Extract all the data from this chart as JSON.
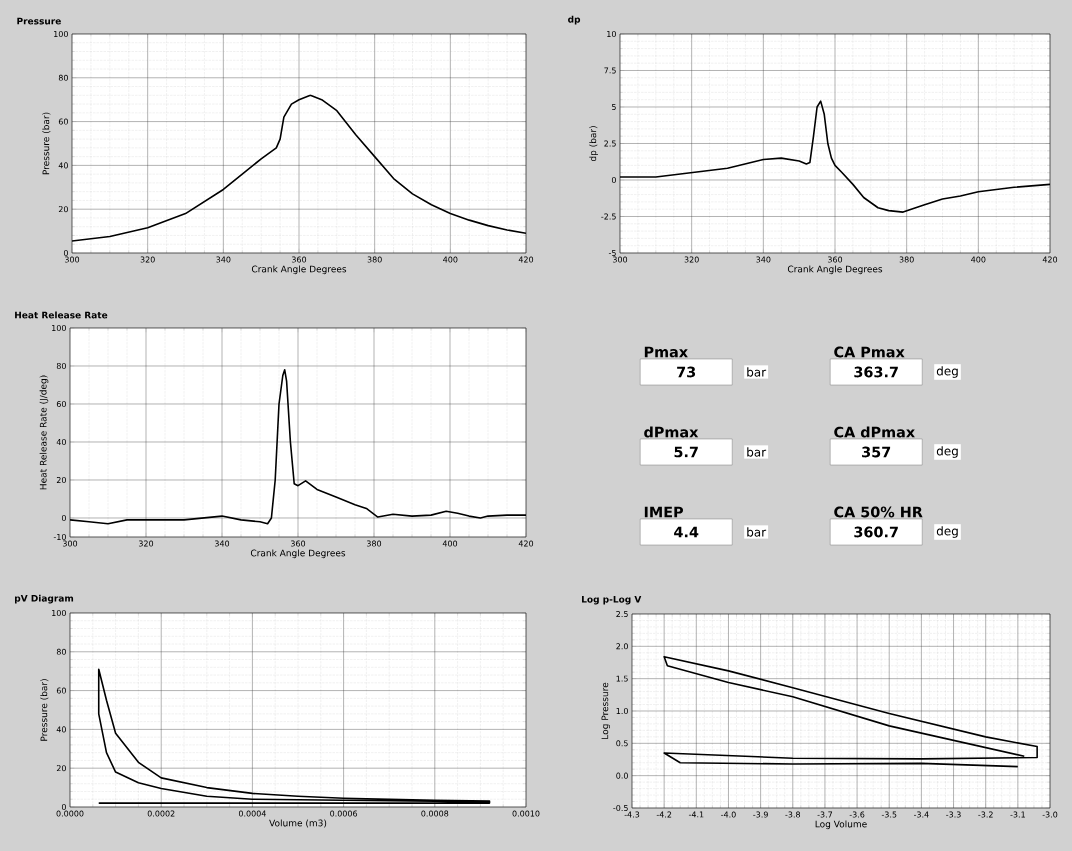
{
  "chart_data": [
    {
      "type": "line",
      "title": "Pressure",
      "xlabel": "Crank Angle Degrees",
      "ylabel": "Pressure (bar)",
      "color": "#000000",
      "marker": "none",
      "grid": true,
      "xlim": [
        300,
        420
      ],
      "xticks": [
        300,
        320,
        340,
        360,
        380,
        400,
        420
      ],
      "ylim": [
        0,
        100
      ],
      "yticks": [
        0,
        20,
        40,
        60,
        80,
        100
      ],
      "x": [
        300,
        310,
        320,
        330,
        340,
        345,
        350,
        354,
        355,
        356,
        358,
        360,
        363,
        366,
        370,
        375,
        380,
        385,
        390,
        395,
        400,
        405,
        410,
        415,
        420
      ],
      "values": [
        5.5,
        7.5,
        11.5,
        18,
        29,
        36,
        43,
        48,
        52,
        62,
        68,
        70,
        72,
        70,
        65,
        54,
        44,
        34,
        27,
        22,
        18,
        15,
        12.5,
        10.5,
        9
      ]
    },
    {
      "type": "line",
      "title": "dp",
      "xlabel": "Crank Angle Degrees",
      "ylabel": "dp (bar)",
      "color": "#000000",
      "marker": "none",
      "grid": true,
      "xlim": [
        300,
        420
      ],
      "xticks": [
        300,
        320,
        340,
        360,
        380,
        400,
        420
      ],
      "ylim": [
        -5,
        10
      ],
      "yticks": [
        -5,
        -2.5,
        0,
        2.5,
        5,
        7.5,
        10
      ],
      "x": [
        300,
        310,
        320,
        330,
        340,
        345,
        350,
        352,
        353,
        354,
        355,
        356,
        357,
        358,
        359,
        360,
        362,
        365,
        368,
        372,
        375,
        379,
        385,
        390,
        395,
        400,
        410,
        420
      ],
      "values": [
        0.2,
        0.2,
        0.5,
        0.8,
        1.4,
        1.5,
        1.3,
        1.1,
        1.2,
        3,
        5,
        5.4,
        4.5,
        2.5,
        1.5,
        1,
        0.5,
        -0.3,
        -1.2,
        -1.9,
        -2.1,
        -2.2,
        -1.7,
        -1.3,
        -1.1,
        -0.8,
        -0.5,
        -0.3
      ]
    },
    {
      "type": "line",
      "title": "Heat Release Rate",
      "xlabel": "Crank Angle Degrees",
      "ylabel": "Heat Release Rate (J/deg)",
      "color": "#000000",
      "marker": "none",
      "grid": true,
      "xlim": [
        300,
        420
      ],
      "xticks": [
        300,
        320,
        340,
        360,
        380,
        400,
        420
      ],
      "ylim": [
        -10,
        100
      ],
      "yticks": [
        -10,
        0,
        20,
        40,
        60,
        80,
        100
      ],
      "x": [
        300,
        305,
        310,
        315,
        320,
        330,
        340,
        345,
        350,
        352,
        353,
        354,
        355,
        356,
        356.5,
        357,
        358,
        359,
        360,
        362,
        365,
        370,
        375,
        378,
        380,
        381,
        385,
        390,
        395,
        399,
        402,
        405,
        408,
        410,
        415,
        420
      ],
      "values": [
        -1,
        -2,
        -3,
        -1,
        -1,
        -1,
        1,
        -1,
        -2,
        -3,
        0,
        20,
        60,
        75,
        78,
        72,
        40,
        18,
        17,
        19.5,
        15,
        11,
        7,
        5,
        2,
        0.5,
        2,
        1,
        1.5,
        3.5,
        2.5,
        1,
        0,
        1,
        1.5,
        1.5
      ]
    },
    {
      "type": "other",
      "annotations": [
        "Pmax",
        "CA Pmax",
        "73",
        "bar",
        "363.7",
        "deg",
        "dPmax",
        "CA dPmax",
        "5.7",
        "bar",
        "357",
        "deg",
        "IMEP",
        "CA 50% HR",
        "4.4",
        "bar",
        "360.7",
        "deg"
      ]
    },
    {
      "type": "line",
      "title": "pV Diagram",
      "xlabel": "Volume (m3)",
      "ylabel": "Pressure (bar)",
      "color": "#000000",
      "marker": "none",
      "grid": true,
      "xlim": [
        0,
        0.001
      ],
      "xticks": [
        {
          "value": 0,
          "label": "0.0000"
        },
        0.0002,
        0.0004,
        0.0006,
        0.0008,
        {
          "value": 0.001,
          "label": "0.0010"
        }
      ],
      "ylim": [
        0,
        100
      ],
      "yticks": [
        0,
        20,
        40,
        60,
        80,
        100
      ],
      "x": [
        0.00092,
        0.0008,
        0.0006,
        0.0004,
        0.0003,
        0.0002,
        0.00015,
        0.0001,
        8e-05,
        6.3e-05,
        6.3e-05,
        8e-05,
        0.0001,
        0.00015,
        0.0002,
        0.0003,
        0.0004,
        0.0005,
        0.0006,
        0.0008,
        0.00092,
        0.00092,
        6.3e-05
      ],
      "values": [
        2.5,
        3,
        3.5,
        4,
        5.5,
        9.5,
        12.5,
        18,
        28,
        48,
        71,
        55,
        38,
        23,
        15,
        10,
        7,
        5.5,
        4.5,
        3.5,
        3,
        2,
        2
      ]
    },
    {
      "type": "line",
      "title": "Log p-Log V",
      "xlabel": "Log Volume",
      "ylabel": "Log Pressure",
      "color": "#000000",
      "marker": "none",
      "grid": true,
      "xlim": [
        -4.3,
        -3.0
      ],
      "xticks": [
        -4.3,
        -4.2,
        -4.1,
        {
          "value": -4.0,
          "label": "-4.0"
        },
        -3.9,
        -3.8,
        -3.7,
        -3.6,
        -3.5,
        -3.4,
        -3.3,
        -3.2,
        -3.1,
        {
          "value": -3.0,
          "label": "-3.0"
        }
      ],
      "ylim": [
        -0.5,
        2.5
      ],
      "yticks": [
        -0.5,
        {
          "value": 0.0,
          "label": "0.0"
        },
        0.5,
        {
          "value": 1.0,
          "label": "1.0"
        },
        1.5,
        {
          "value": 2.0,
          "label": "2.0"
        },
        2.5
      ],
      "x": [
        -3.08,
        -3.5,
        -3.8,
        -4.0,
        -4.19,
        -4.2,
        -4.0,
        -3.8,
        -3.5,
        -3.2,
        -3.04,
        -3.04,
        -3.4,
        -3.8,
        -4.2,
        -4.15,
        -3.8,
        -3.4,
        -3.1
      ],
      "values": [
        0.3,
        0.77,
        1.22,
        1.44,
        1.7,
        1.84,
        1.62,
        1.36,
        0.96,
        0.6,
        0.45,
        0.28,
        0.26,
        0.27,
        0.35,
        0.2,
        0.18,
        0.19,
        0.14
      ]
    }
  ]
}
